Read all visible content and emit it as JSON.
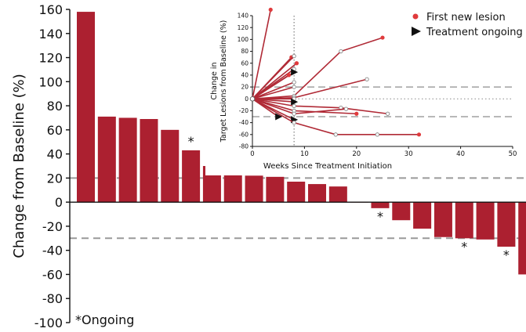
{
  "chart_data": [
    {
      "type": "bar",
      "ylabel": "Change from Baseline (%)",
      "ylim": [
        -100,
        160
      ],
      "yticks": [
        160,
        140,
        120,
        100,
        80,
        60,
        40,
        20,
        0,
        -20,
        -40,
        -60,
        -80,
        -100
      ],
      "bar_color": "#ac2030",
      "reference_lines": [
        20,
        -30
      ],
      "values": [
        158,
        71,
        70,
        69,
        60,
        43,
        30,
        24,
        22,
        21,
        17,
        15,
        13,
        0,
        -5,
        -15,
        -22,
        -29,
        -30,
        -31,
        -37,
        -60
      ],
      "ongoing_flags": [
        false,
        false,
        false,
        false,
        false,
        true,
        false,
        false,
        false,
        false,
        false,
        false,
        false,
        false,
        true,
        false,
        false,
        false,
        true,
        false,
        true,
        false
      ],
      "ongoing_marker": "*",
      "footnote": "*Ongoing"
    },
    {
      "type": "line",
      "xlabel": "Weeks Since Treatment Initiation",
      "ylabel_lines": [
        "Change in",
        "Target Lesions from Baseline (%)"
      ],
      "xlim": [
        0,
        50
      ],
      "ylim": [
        -80,
        140
      ],
      "xticks": [
        0,
        10,
        20,
        30,
        40,
        50
      ],
      "yticks": [
        140,
        120,
        100,
        80,
        60,
        40,
        20,
        0,
        -20,
        -40,
        -60,
        -80
      ],
      "line_color": "#b02a36",
      "reference_lines": [
        20,
        -30
      ],
      "vertical_line": 8,
      "legend": [
        {
          "label": "First new lesion",
          "marker": "circle",
          "color": "#e03a3c"
        },
        {
          "label": "Treatment ongoing",
          "marker": "triangle",
          "color": "#111111"
        }
      ],
      "series": [
        {
          "x": [
            0,
            3.5
          ],
          "y": [
            0,
            150
          ],
          "end": "new_lesion"
        },
        {
          "x": [
            0,
            7.5
          ],
          "y": [
            0,
            70
          ],
          "end": "new_lesion"
        },
        {
          "x": [
            0,
            8
          ],
          "y": [
            0,
            72
          ],
          "end": "open"
        },
        {
          "x": [
            0,
            8.5
          ],
          "y": [
            0,
            60
          ],
          "end": "new_lesion"
        },
        {
          "x": [
            0,
            8
          ],
          "y": [
            0,
            50
          ],
          "end": "open"
        },
        {
          "x": [
            0,
            8
          ],
          "y": [
            0,
            45
          ],
          "end": "ongoing"
        },
        {
          "x": [
            0,
            7
          ],
          "y": [
            0,
            40
          ],
          "end": "new_lesion"
        },
        {
          "x": [
            0,
            8
          ],
          "y": [
            0,
            28
          ],
          "end": "open"
        },
        {
          "x": [
            0,
            8
          ],
          "y": [
            0,
            20
          ],
          "end": "open"
        },
        {
          "x": [
            0,
            8,
            17,
            25
          ],
          "y": [
            0,
            5,
            80,
            103
          ],
          "end": "new_lesion"
        },
        {
          "x": [
            0,
            8,
            22
          ],
          "y": [
            0,
            2,
            33
          ],
          "end": "open"
        },
        {
          "x": [
            0,
            8
          ],
          "y": [
            0,
            0
          ],
          "end": "open"
        },
        {
          "x": [
            0,
            8
          ],
          "y": [
            0,
            -5
          ],
          "end": "ongoing"
        },
        {
          "x": [
            0,
            8,
            20
          ],
          "y": [
            0,
            -20,
            -25
          ],
          "end": "new_lesion"
        },
        {
          "x": [
            0,
            8,
            17,
            26
          ],
          "y": [
            0,
            -12,
            -15,
            -25
          ],
          "end": "open"
        },
        {
          "x": [
            0,
            8,
            18
          ],
          "y": [
            0,
            -25,
            -17
          ],
          "end": "open"
        },
        {
          "x": [
            0,
            8
          ],
          "y": [
            0,
            -35
          ],
          "end": "ongoing"
        },
        {
          "x": [
            0,
            5
          ],
          "y": [
            0,
            -30
          ],
          "end": "ongoing"
        },
        {
          "x": [
            0,
            8,
            16,
            24,
            32
          ],
          "y": [
            0,
            -40,
            -60,
            -60,
            -60
          ],
          "end": "new_lesion"
        }
      ]
    }
  ]
}
